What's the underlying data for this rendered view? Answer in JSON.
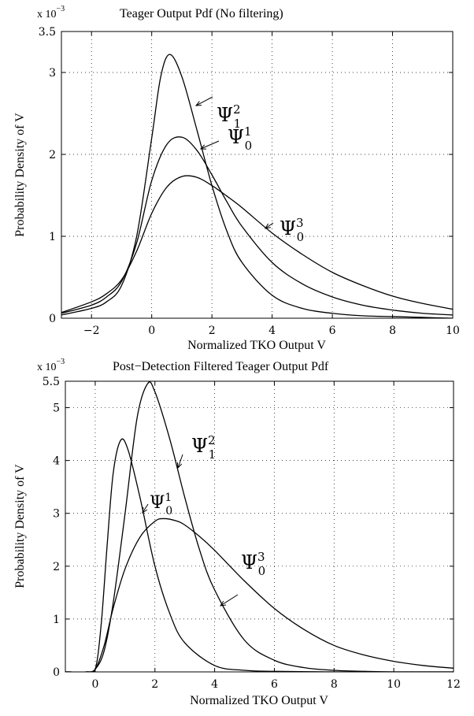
{
  "chart_data": [
    {
      "type": "line",
      "title": "Teager Output Pdf (No filtering)",
      "xlabel": "Normalized TKO Output V",
      "ylabel": "Probability Density of  V",
      "y_multiplier": {
        "base": "x 10",
        "exponent": "−3"
      },
      "xlim": [
        -3,
        10
      ],
      "ylim": [
        0,
        3.5
      ],
      "xticks": [
        -2,
        0,
        2,
        4,
        6,
        8,
        10
      ],
      "xtick_labels": [
        "−2",
        "0",
        "2",
        "4",
        "6",
        "8",
        "10"
      ],
      "yticks": [
        0,
        1,
        2,
        3,
        3.5
      ],
      "ytick_labels": [
        "0",
        "1",
        "2",
        "3",
        "3.5"
      ],
      "grid": true,
      "legend": "none",
      "series": [
        {
          "name": "Ψ12",
          "label": {
            "base": "Ψ",
            "sub": "1",
            "sup": "2"
          },
          "x": [
            -3,
            -2,
            -1.5,
            -1,
            -0.5,
            0,
            0.3,
            0.6,
            1,
            1.5,
            2,
            2.5,
            3,
            4,
            5,
            6,
            7,
            8,
            9,
            10
          ],
          "y": [
            0.04,
            0.12,
            0.2,
            0.4,
            1.0,
            2.2,
            2.95,
            3.22,
            2.95,
            2.3,
            1.62,
            1.06,
            0.68,
            0.28,
            0.12,
            0.06,
            0.03,
            0.02,
            0.01,
            0.0
          ]
        },
        {
          "name": "Ψ01",
          "label": {
            "base": "Ψ",
            "sub": "0",
            "sup": "1"
          },
          "x": [
            -3,
            -2,
            -1.5,
            -1,
            -0.5,
            0,
            0.5,
            1,
            1.5,
            2,
            2.5,
            3,
            4,
            5,
            6,
            7,
            8,
            9,
            10
          ],
          "y": [
            0.06,
            0.16,
            0.26,
            0.45,
            0.92,
            1.68,
            2.12,
            2.21,
            2.05,
            1.75,
            1.42,
            1.12,
            0.68,
            0.42,
            0.26,
            0.16,
            0.1,
            0.06,
            0.04
          ]
        },
        {
          "name": "Ψ03",
          "label": {
            "base": "Ψ",
            "sub": "0",
            "sup": "3"
          },
          "x": [
            -3,
            -2,
            -1.5,
            -1,
            -0.5,
            0,
            0.5,
            1,
            1.5,
            2,
            2.5,
            3,
            4,
            5,
            6,
            7,
            8,
            9,
            10
          ],
          "y": [
            0.07,
            0.2,
            0.3,
            0.47,
            0.82,
            1.28,
            1.6,
            1.73,
            1.72,
            1.62,
            1.49,
            1.35,
            1.04,
            0.78,
            0.56,
            0.4,
            0.27,
            0.18,
            0.11
          ]
        }
      ]
    },
    {
      "type": "line",
      "title": "Post−Detection Filtered Teager Output Pdf",
      "xlabel": "Normalized TKO Output V",
      "ylabel": "Probability Density of  V",
      "y_multiplier": {
        "base": "x 10",
        "exponent": "−3"
      },
      "xlim": [
        -1,
        12
      ],
      "ylim": [
        0,
        5.5
      ],
      "xticks": [
        0,
        2,
        4,
        6,
        8,
        10,
        12
      ],
      "xtick_labels": [
        "0",
        "2",
        "4",
        "6",
        "8",
        "10",
        "12"
      ],
      "yticks": [
        0,
        1,
        2,
        3,
        4,
        5,
        5.5
      ],
      "ytick_labels": [
        "0",
        "1",
        "2",
        "3",
        "4",
        "5",
        "5.5"
      ],
      "grid": true,
      "legend": "none",
      "series": [
        {
          "name": "Ψ12",
          "label": {
            "base": "Ψ",
            "sub": "1",
            "sup": "2"
          },
          "x": [
            -1,
            -0.3,
            0,
            0.3,
            0.6,
            1,
            1.4,
            1.75,
            2,
            2.5,
            3,
            3.5,
            4,
            5,
            6,
            7,
            8,
            9,
            10,
            12
          ],
          "y": [
            0,
            0,
            0.05,
            0.4,
            1.3,
            3.0,
            4.8,
            5.45,
            5.3,
            4.4,
            3.3,
            2.3,
            1.55,
            0.6,
            0.22,
            0.08,
            0.03,
            0.01,
            0.0,
            0.0
          ]
        },
        {
          "name": "Ψ01",
          "label": {
            "base": "Ψ",
            "sub": "0",
            "sup": "1"
          },
          "x": [
            -1,
            -0.3,
            0,
            0.2,
            0.4,
            0.6,
            0.85,
            1.1,
            1.5,
            2,
            2.5,
            3,
            4,
            5,
            6,
            8,
            12
          ],
          "y": [
            0,
            0,
            0.05,
            0.9,
            2.4,
            3.75,
            4.38,
            4.2,
            3.3,
            2.0,
            1.1,
            0.55,
            0.12,
            0.03,
            0.01,
            0.0,
            0.0
          ]
        },
        {
          "name": "Ψ03",
          "label": {
            "base": "Ψ",
            "sub": "0",
            "sup": "3"
          },
          "x": [
            -1,
            -0.3,
            0,
            0.3,
            0.6,
            1,
            1.5,
            2,
            2.3,
            2.7,
            3,
            3.5,
            4,
            5,
            6,
            7,
            8,
            9,
            10,
            11,
            12
          ],
          "y": [
            0,
            0,
            0.05,
            0.5,
            1.2,
            1.95,
            2.55,
            2.85,
            2.9,
            2.86,
            2.78,
            2.56,
            2.3,
            1.72,
            1.2,
            0.8,
            0.5,
            0.32,
            0.2,
            0.12,
            0.07
          ]
        }
      ]
    }
  ]
}
